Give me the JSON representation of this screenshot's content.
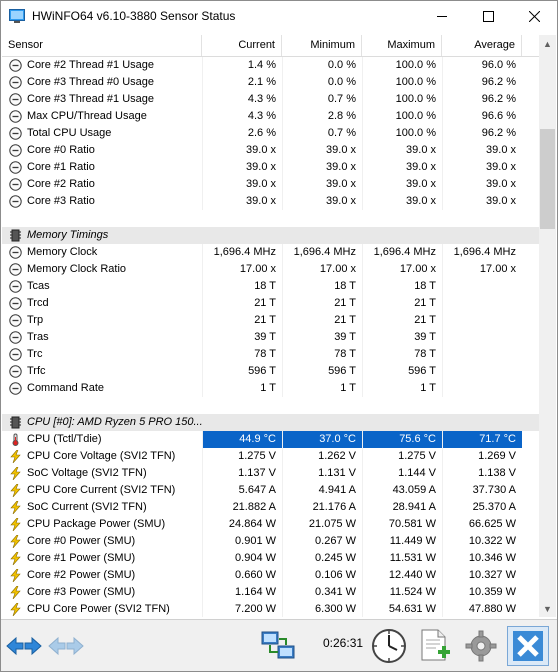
{
  "window": {
    "title": "HWiNFO64 v6.10-3880 Sensor Status",
    "controls": {
      "minimize": "—",
      "maximize": "☐",
      "close": "✕"
    }
  },
  "columns": {
    "sensor": "Sensor",
    "current": "Current",
    "minimum": "Minimum",
    "maximum": "Maximum",
    "average": "Average"
  },
  "rows": [
    {
      "type": "sensor",
      "icon": "minus-circle-icon",
      "name": "Core #2 Thread #1 Usage",
      "current": "1.4 %",
      "minimum": "0.0 %",
      "maximum": "100.0 %",
      "average": "96.0 %"
    },
    {
      "type": "sensor",
      "icon": "minus-circle-icon",
      "name": "Core #3 Thread #0 Usage",
      "current": "2.1 %",
      "minimum": "0.0 %",
      "maximum": "100.0 %",
      "average": "96.2 %"
    },
    {
      "type": "sensor",
      "icon": "minus-circle-icon",
      "name": "Core #3 Thread #1 Usage",
      "current": "4.3 %",
      "minimum": "0.7 %",
      "maximum": "100.0 %",
      "average": "96.2 %"
    },
    {
      "type": "sensor",
      "icon": "minus-circle-icon",
      "name": "Max CPU/Thread Usage",
      "current": "4.3 %",
      "minimum": "2.8 %",
      "maximum": "100.0 %",
      "average": "96.6 %"
    },
    {
      "type": "sensor",
      "icon": "minus-circle-icon",
      "name": "Total CPU Usage",
      "current": "2.6 %",
      "minimum": "0.7 %",
      "maximum": "100.0 %",
      "average": "96.2 %"
    },
    {
      "type": "sensor",
      "icon": "minus-circle-icon",
      "name": "Core #0 Ratio",
      "current": "39.0 x",
      "minimum": "39.0 x",
      "maximum": "39.0 x",
      "average": "39.0 x"
    },
    {
      "type": "sensor",
      "icon": "minus-circle-icon",
      "name": "Core #1 Ratio",
      "current": "39.0 x",
      "minimum": "39.0 x",
      "maximum": "39.0 x",
      "average": "39.0 x"
    },
    {
      "type": "sensor",
      "icon": "minus-circle-icon",
      "name": "Core #2 Ratio",
      "current": "39.0 x",
      "minimum": "39.0 x",
      "maximum": "39.0 x",
      "average": "39.0 x"
    },
    {
      "type": "sensor",
      "icon": "minus-circle-icon",
      "name": "Core #3 Ratio",
      "current": "39.0 x",
      "minimum": "39.0 x",
      "maximum": "39.0 x",
      "average": "39.0 x"
    },
    {
      "type": "blank"
    },
    {
      "type": "group",
      "icon": "memory-chip-icon",
      "name": "Memory Timings"
    },
    {
      "type": "sensor",
      "icon": "minus-circle-icon",
      "name": "Memory Clock",
      "current": "1,696.4 MHz",
      "minimum": "1,696.4 MHz",
      "maximum": "1,696.4 MHz",
      "average": "1,696.4 MHz"
    },
    {
      "type": "sensor",
      "icon": "minus-circle-icon",
      "name": "Memory Clock Ratio",
      "current": "17.00 x",
      "minimum": "17.00 x",
      "maximum": "17.00 x",
      "average": "17.00 x"
    },
    {
      "type": "sensor",
      "icon": "minus-circle-icon",
      "name": "Tcas",
      "current": "18 T",
      "minimum": "18 T",
      "maximum": "18 T",
      "average": ""
    },
    {
      "type": "sensor",
      "icon": "minus-circle-icon",
      "name": "Trcd",
      "current": "21 T",
      "minimum": "21 T",
      "maximum": "21 T",
      "average": ""
    },
    {
      "type": "sensor",
      "icon": "minus-circle-icon",
      "name": "Trp",
      "current": "21 T",
      "minimum": "21 T",
      "maximum": "21 T",
      "average": ""
    },
    {
      "type": "sensor",
      "icon": "minus-circle-icon",
      "name": "Tras",
      "current": "39 T",
      "minimum": "39 T",
      "maximum": "39 T",
      "average": ""
    },
    {
      "type": "sensor",
      "icon": "minus-circle-icon",
      "name": "Trc",
      "current": "78 T",
      "minimum": "78 T",
      "maximum": "78 T",
      "average": ""
    },
    {
      "type": "sensor",
      "icon": "minus-circle-icon",
      "name": "Trfc",
      "current": "596 T",
      "minimum": "596 T",
      "maximum": "596 T",
      "average": ""
    },
    {
      "type": "sensor",
      "icon": "minus-circle-icon",
      "name": "Command Rate",
      "current": "1 T",
      "minimum": "1 T",
      "maximum": "1 T",
      "average": ""
    },
    {
      "type": "blank"
    },
    {
      "type": "group",
      "icon": "cpu-chip-icon",
      "name": "CPU [#0]: AMD Ryzen 5 PRO 150..."
    },
    {
      "type": "sensor",
      "icon": "thermometer-icon",
      "name": "CPU (Tctl/Tdie)",
      "current": "44.9 °C",
      "minimum": "37.0 °C",
      "maximum": "75.6 °C",
      "average": "71.7 °C",
      "selected": true
    },
    {
      "type": "sensor",
      "icon": "lightning-icon",
      "name": "CPU Core Voltage (SVI2 TFN)",
      "current": "1.275 V",
      "minimum": "1.262 V",
      "maximum": "1.275 V",
      "average": "1.269 V"
    },
    {
      "type": "sensor",
      "icon": "lightning-icon",
      "name": "SoC Voltage (SVI2 TFN)",
      "current": "1.137 V",
      "minimum": "1.131 V",
      "maximum": "1.144 V",
      "average": "1.138 V"
    },
    {
      "type": "sensor",
      "icon": "lightning-icon",
      "name": "CPU Core Current (SVI2 TFN)",
      "current": "5.647 A",
      "minimum": "4.941 A",
      "maximum": "43.059 A",
      "average": "37.730 A"
    },
    {
      "type": "sensor",
      "icon": "lightning-icon",
      "name": "SoC Current (SVI2 TFN)",
      "current": "21.882 A",
      "minimum": "21.176 A",
      "maximum": "28.941 A",
      "average": "25.370 A"
    },
    {
      "type": "sensor",
      "icon": "lightning-icon",
      "name": "CPU Package Power (SMU)",
      "current": "24.864 W",
      "minimum": "21.075 W",
      "maximum": "70.581 W",
      "average": "66.625 W"
    },
    {
      "type": "sensor",
      "icon": "lightning-icon",
      "name": "Core #0 Power (SMU)",
      "current": "0.901 W",
      "minimum": "0.267 W",
      "maximum": "11.449 W",
      "average": "10.322 W"
    },
    {
      "type": "sensor",
      "icon": "lightning-icon",
      "name": "Core #1 Power (SMU)",
      "current": "0.904 W",
      "minimum": "0.245 W",
      "maximum": "11.531 W",
      "average": "10.346 W"
    },
    {
      "type": "sensor",
      "icon": "lightning-icon",
      "name": "Core #2 Power (SMU)",
      "current": "0.660 W",
      "minimum": "0.106 W",
      "maximum": "12.440 W",
      "average": "10.327 W"
    },
    {
      "type": "sensor",
      "icon": "lightning-icon",
      "name": "Core #3 Power (SMU)",
      "current": "1.164 W",
      "minimum": "0.341 W",
      "maximum": "11.524 W",
      "average": "10.359 W"
    },
    {
      "type": "sensor",
      "icon": "lightning-icon",
      "name": "CPU Core Power (SVI2 TFN)",
      "current": "7.200 W",
      "minimum": "6.300 W",
      "maximum": "54.631 W",
      "average": "47.880 W"
    }
  ],
  "toolbar": {
    "elapsed_time": "0:26:31"
  },
  "colors": {
    "selection": "#0a64c8",
    "group_background": "#e8e8e8",
    "lightning": "#f5c400"
  }
}
